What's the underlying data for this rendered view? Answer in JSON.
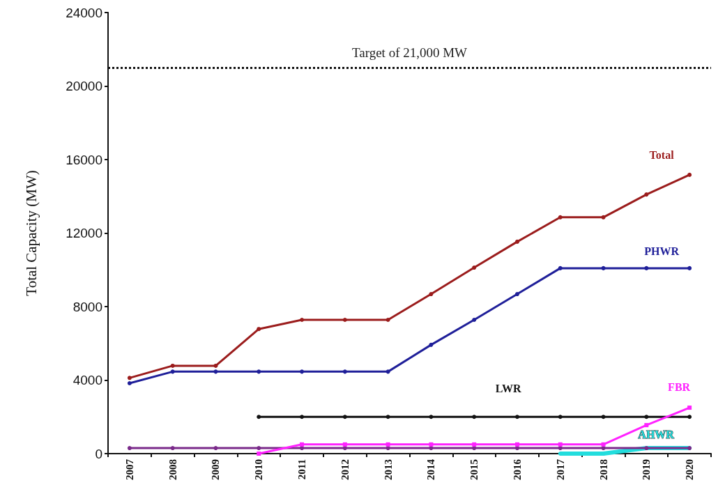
{
  "chart_data": {
    "type": "line",
    "ylabel": "Total Capacity (MW)",
    "categories": [
      "2007",
      "2008",
      "2009",
      "2010",
      "2011",
      "2012",
      "2013",
      "2014",
      "2015",
      "2016",
      "2017",
      "2018",
      "2019",
      "2020"
    ],
    "series": [
      {
        "name": "Total",
        "color": "#9b1c1c",
        "values": [
          4120,
          4780,
          4780,
          6780,
          7280,
          7280,
          7280,
          8680,
          10120,
          11530,
          12860,
          12860,
          14100,
          15170
        ]
      },
      {
        "name": "PHWR",
        "color": "#1f1f99",
        "values": [
          3830,
          4460,
          4460,
          4460,
          4460,
          4460,
          4460,
          5920,
          7280,
          8680,
          10090,
          10090,
          10090,
          10090
        ]
      },
      {
        "name": "LWR",
        "color": "#111111",
        "values": [
          null,
          null,
          null,
          2000,
          2000,
          2000,
          2000,
          2000,
          2000,
          2000,
          2000,
          2000,
          2000,
          2000
        ]
      },
      {
        "color": "#7a2a8a",
        "values": [
          300,
          300,
          300,
          300,
          300,
          300,
          300,
          300,
          300,
          300,
          300,
          300,
          300,
          300
        ]
      },
      {
        "name": "FBR",
        "color": "#ff22ff",
        "marker": "square",
        "values": [
          null,
          null,
          null,
          0,
          500,
          500,
          500,
          500,
          500,
          500,
          500,
          500,
          1550,
          2500
        ]
      },
      {
        "name": "AHWR",
        "color": "#22dddd",
        "values": [
          null,
          null,
          null,
          null,
          null,
          null,
          null,
          null,
          null,
          null,
          0,
          0,
          300,
          300
        ]
      }
    ],
    "ylim": [
      0,
      24000
    ],
    "yticks": [
      0,
      4000,
      8000,
      12000,
      16000,
      20000,
      24000
    ],
    "grid": false,
    "legend": false,
    "marker": "circle",
    "ref_lines": [
      {
        "axis": "y",
        "value": 21000,
        "label": "Target of 21,000 MW",
        "color": "#111111",
        "line_style": "dotted"
      }
    ]
  }
}
